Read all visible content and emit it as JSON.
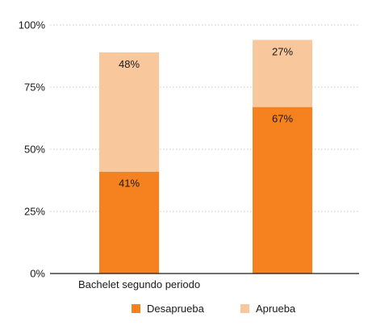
{
  "chart_data": {
    "type": "bar",
    "stacked": true,
    "categories": [
      "Bachelet segundo periodo",
      ""
    ],
    "series": [
      {
        "name": "Desaprueba",
        "color": "#F5821F",
        "values": [
          41,
          67
        ],
        "labels": [
          "41%",
          "67%"
        ]
      },
      {
        "name": "Aprueba",
        "color": "#F8C89C",
        "values": [
          48,
          27
        ],
        "labels": [
          "48%",
          "27%"
        ]
      }
    ],
    "y_ticks": [
      0,
      25,
      50,
      75,
      100
    ],
    "y_tick_labels": [
      "0%",
      "25%",
      "50%",
      "75%",
      "100%"
    ],
    "ylim": [
      0,
      100
    ],
    "grid": "horizontal dotted",
    "legend_position": "bottom-center"
  }
}
